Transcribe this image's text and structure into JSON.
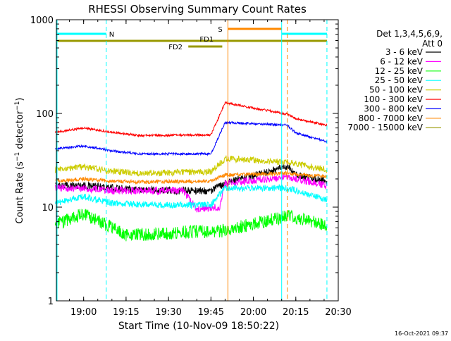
{
  "chart_data": {
    "type": "line",
    "title": "RHESSI Observing Summary Count Rates",
    "xlabel": "Start Time (10-Nov-09 18:50:22)",
    "ylabel": "Count Rate (s⁻¹ detector⁻¹)",
    "ylabel_parts": {
      "main": "Count Rate (s",
      "sup1": "−1",
      "mid": " detector",
      "sup2": "−1",
      "end": ")"
    },
    "yscale": "log",
    "ylim": [
      1,
      1000
    ],
    "xlim": [
      "18:50:22",
      "20:30"
    ],
    "x_ticks": [
      "19:00",
      "19:15",
      "19:30",
      "19:45",
      "20:00",
      "20:15",
      "20:30"
    ],
    "y_ticks": [
      "1",
      "10",
      "100",
      "1000"
    ],
    "timestamp": "16-Oct-2021 09:37",
    "legend": {
      "placement": "top-right",
      "header": [
        "Det 1,3,4,5,6,9,",
        "Att 0"
      ]
    },
    "series": [
      {
        "name": "3 - 6 keV",
        "color": "#000000",
        "points": [
          [
            "18:50",
            17
          ],
          [
            "19:00",
            17
          ],
          [
            "19:10",
            16
          ],
          [
            "19:30",
            15
          ],
          [
            "19:45",
            15
          ],
          [
            "19:50",
            18
          ],
          [
            "20:12",
            27
          ],
          [
            "20:15",
            22
          ],
          [
            "20:26",
            19
          ]
        ]
      },
      {
        "name": "6 - 12 keV",
        "color": "#ff00ff",
        "points": [
          [
            "18:50",
            16
          ],
          [
            "19:00",
            16
          ],
          [
            "19:10",
            15
          ],
          [
            "19:35",
            15
          ],
          [
            "19:40",
            9.5
          ],
          [
            "19:48",
            10
          ],
          [
            "19:50",
            18
          ],
          [
            "20:12",
            21
          ],
          [
            "20:26",
            17
          ]
        ]
      },
      {
        "name": "12 - 25 keV",
        "color": "#00ff00",
        "points": [
          [
            "18:50",
            6.5
          ],
          [
            "19:00",
            8.5
          ],
          [
            "19:10",
            6
          ],
          [
            "19:15",
            5
          ],
          [
            "19:40",
            5.5
          ],
          [
            "19:48",
            5.5
          ],
          [
            "20:12",
            8
          ],
          [
            "20:26",
            6.5
          ]
        ]
      },
      {
        "name": "25 - 50 keV",
        "color": "#00ffff",
        "points": [
          [
            "18:50",
            11
          ],
          [
            "19:00",
            13
          ],
          [
            "19:10",
            11
          ],
          [
            "19:30",
            10.5
          ],
          [
            "19:45",
            10.5
          ],
          [
            "19:50",
            16
          ],
          [
            "20:12",
            16
          ],
          [
            "20:26",
            12
          ]
        ]
      },
      {
        "name": "50 - 100 keV",
        "color": "#cccc00",
        "points": [
          [
            "18:50",
            25
          ],
          [
            "19:00",
            27
          ],
          [
            "19:10",
            24
          ],
          [
            "19:20",
            23
          ],
          [
            "19:45",
            24
          ],
          [
            "19:50",
            33
          ],
          [
            "20:12",
            30
          ],
          [
            "20:26",
            25
          ]
        ]
      },
      {
        "name": "100 - 300 keV",
        "color": "#ff0000",
        "points": [
          [
            "18:50",
            63
          ],
          [
            "19:00",
            70
          ],
          [
            "19:10",
            63
          ],
          [
            "19:20",
            58
          ],
          [
            "19:45",
            59
          ],
          [
            "19:50",
            130
          ],
          [
            "20:12",
            98
          ],
          [
            "20:15",
            88
          ],
          [
            "20:26",
            75
          ]
        ]
      },
      {
        "name": "300 - 800 keV",
        "color": "#0000ff",
        "points": [
          [
            "18:50",
            42
          ],
          [
            "19:00",
            45
          ],
          [
            "19:10",
            40
          ],
          [
            "19:20",
            37
          ],
          [
            "19:45",
            37
          ],
          [
            "19:50",
            80
          ],
          [
            "20:12",
            75
          ],
          [
            "20:15",
            62
          ],
          [
            "20:26",
            50
          ]
        ]
      },
      {
        "name": "800 - 7000 keV",
        "color": "#ff8800",
        "points": [
          [
            "18:50",
            19
          ],
          [
            "19:00",
            20
          ],
          [
            "19:10",
            19
          ],
          [
            "19:20",
            18.5
          ],
          [
            "19:45",
            19
          ],
          [
            "19:50",
            22
          ],
          [
            "20:12",
            23
          ],
          [
            "20:26",
            21
          ]
        ]
      },
      {
        "name": "7000 - 15000 keV",
        "color": "#999900",
        "points": []
      }
    ],
    "status_bars": [
      {
        "label": "N",
        "color": "#00ffff",
        "segments": [
          [
            "18:50:22",
            "19:08"
          ],
          [
            "20:10",
            "20:26"
          ]
        ]
      },
      {
        "label": "S",
        "color": "#ff8800",
        "segments": [
          [
            "19:51",
            "20:10"
          ]
        ]
      },
      {
        "label": "FD1",
        "color": "#999900",
        "segments": [
          [
            "18:50:22",
            "19:50"
          ],
          [
            "19:50",
            "20:26"
          ]
        ]
      },
      {
        "label": "FD2",
        "color": "#999900",
        "segments": [
          [
            "19:37",
            "19:49"
          ]
        ]
      }
    ],
    "vertical_markers": [
      {
        "time": "19:08",
        "color": "#00ffff",
        "style": "dashed"
      },
      {
        "time": "19:51",
        "color": "#ff8800",
        "style": "solid"
      },
      {
        "time": "20:10",
        "color": "#00ffff",
        "style": "solid"
      },
      {
        "time": "20:12",
        "color": "#ff8800",
        "style": "dashed"
      },
      {
        "time": "20:26",
        "color": "#00ffff",
        "style": "dashed"
      }
    ],
    "grid": false
  }
}
